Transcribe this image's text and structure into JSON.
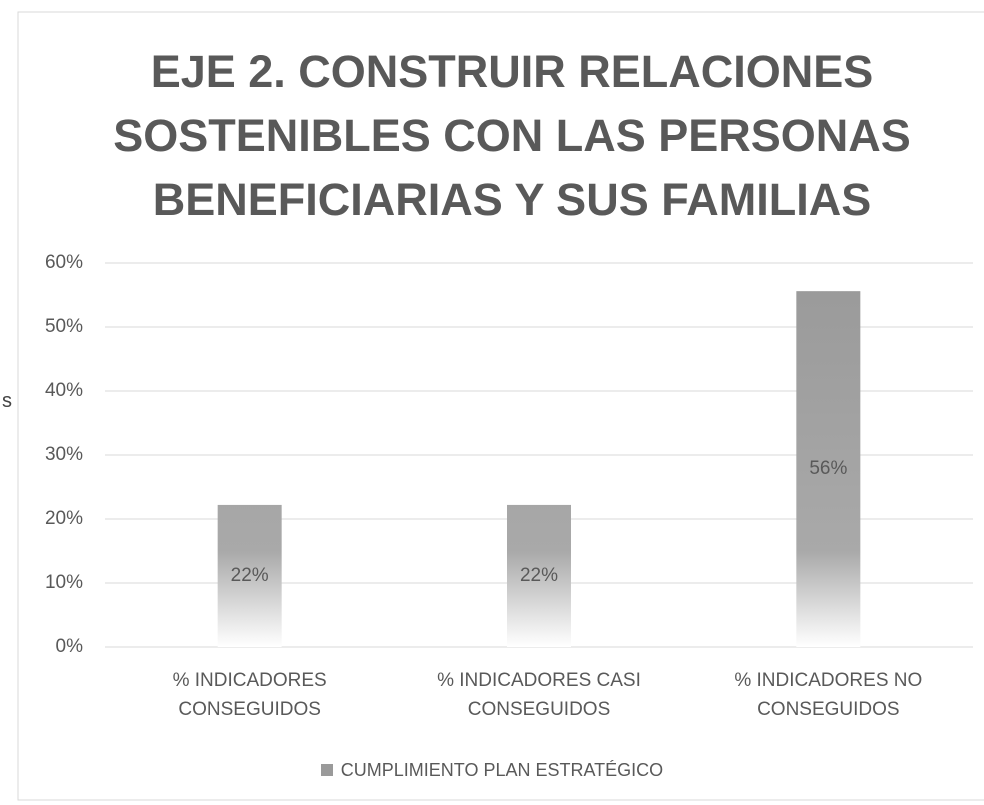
{
  "chart_data": {
    "type": "bar",
    "title": "EJE 2. CONSTRUIR RELACIONES SOSTENIBLES CON LAS PERSONAS BENEFICIARIAS Y SUS FAMILIAS",
    "side_text": "s",
    "categories": [
      "% INDICADORES CONSEGUIDOS",
      "% INDICADORES CASI CONSEGUIDOS",
      "% INDICADORES NO CONSEGUIDOS"
    ],
    "series": [
      {
        "name": "CUMPLIMIENTO PLAN ESTRATÉGICO",
        "color": "#9a9a9a",
        "values": [
          22.2,
          22.2,
          55.6
        ],
        "value_labels": [
          "22%",
          "22%",
          "56%"
        ]
      }
    ],
    "ylim": [
      0,
      60
    ],
    "yticks": [
      {
        "value": 0,
        "label": "0%"
      },
      {
        "value": 10,
        "label": "10%"
      },
      {
        "value": 20,
        "label": "20%"
      },
      {
        "value": 30,
        "label": "30%"
      },
      {
        "value": 40,
        "label": "40%"
      },
      {
        "value": 50,
        "label": "50%"
      },
      {
        "value": 60,
        "label": "60%"
      }
    ],
    "grid": true,
    "legend": "bottom"
  }
}
